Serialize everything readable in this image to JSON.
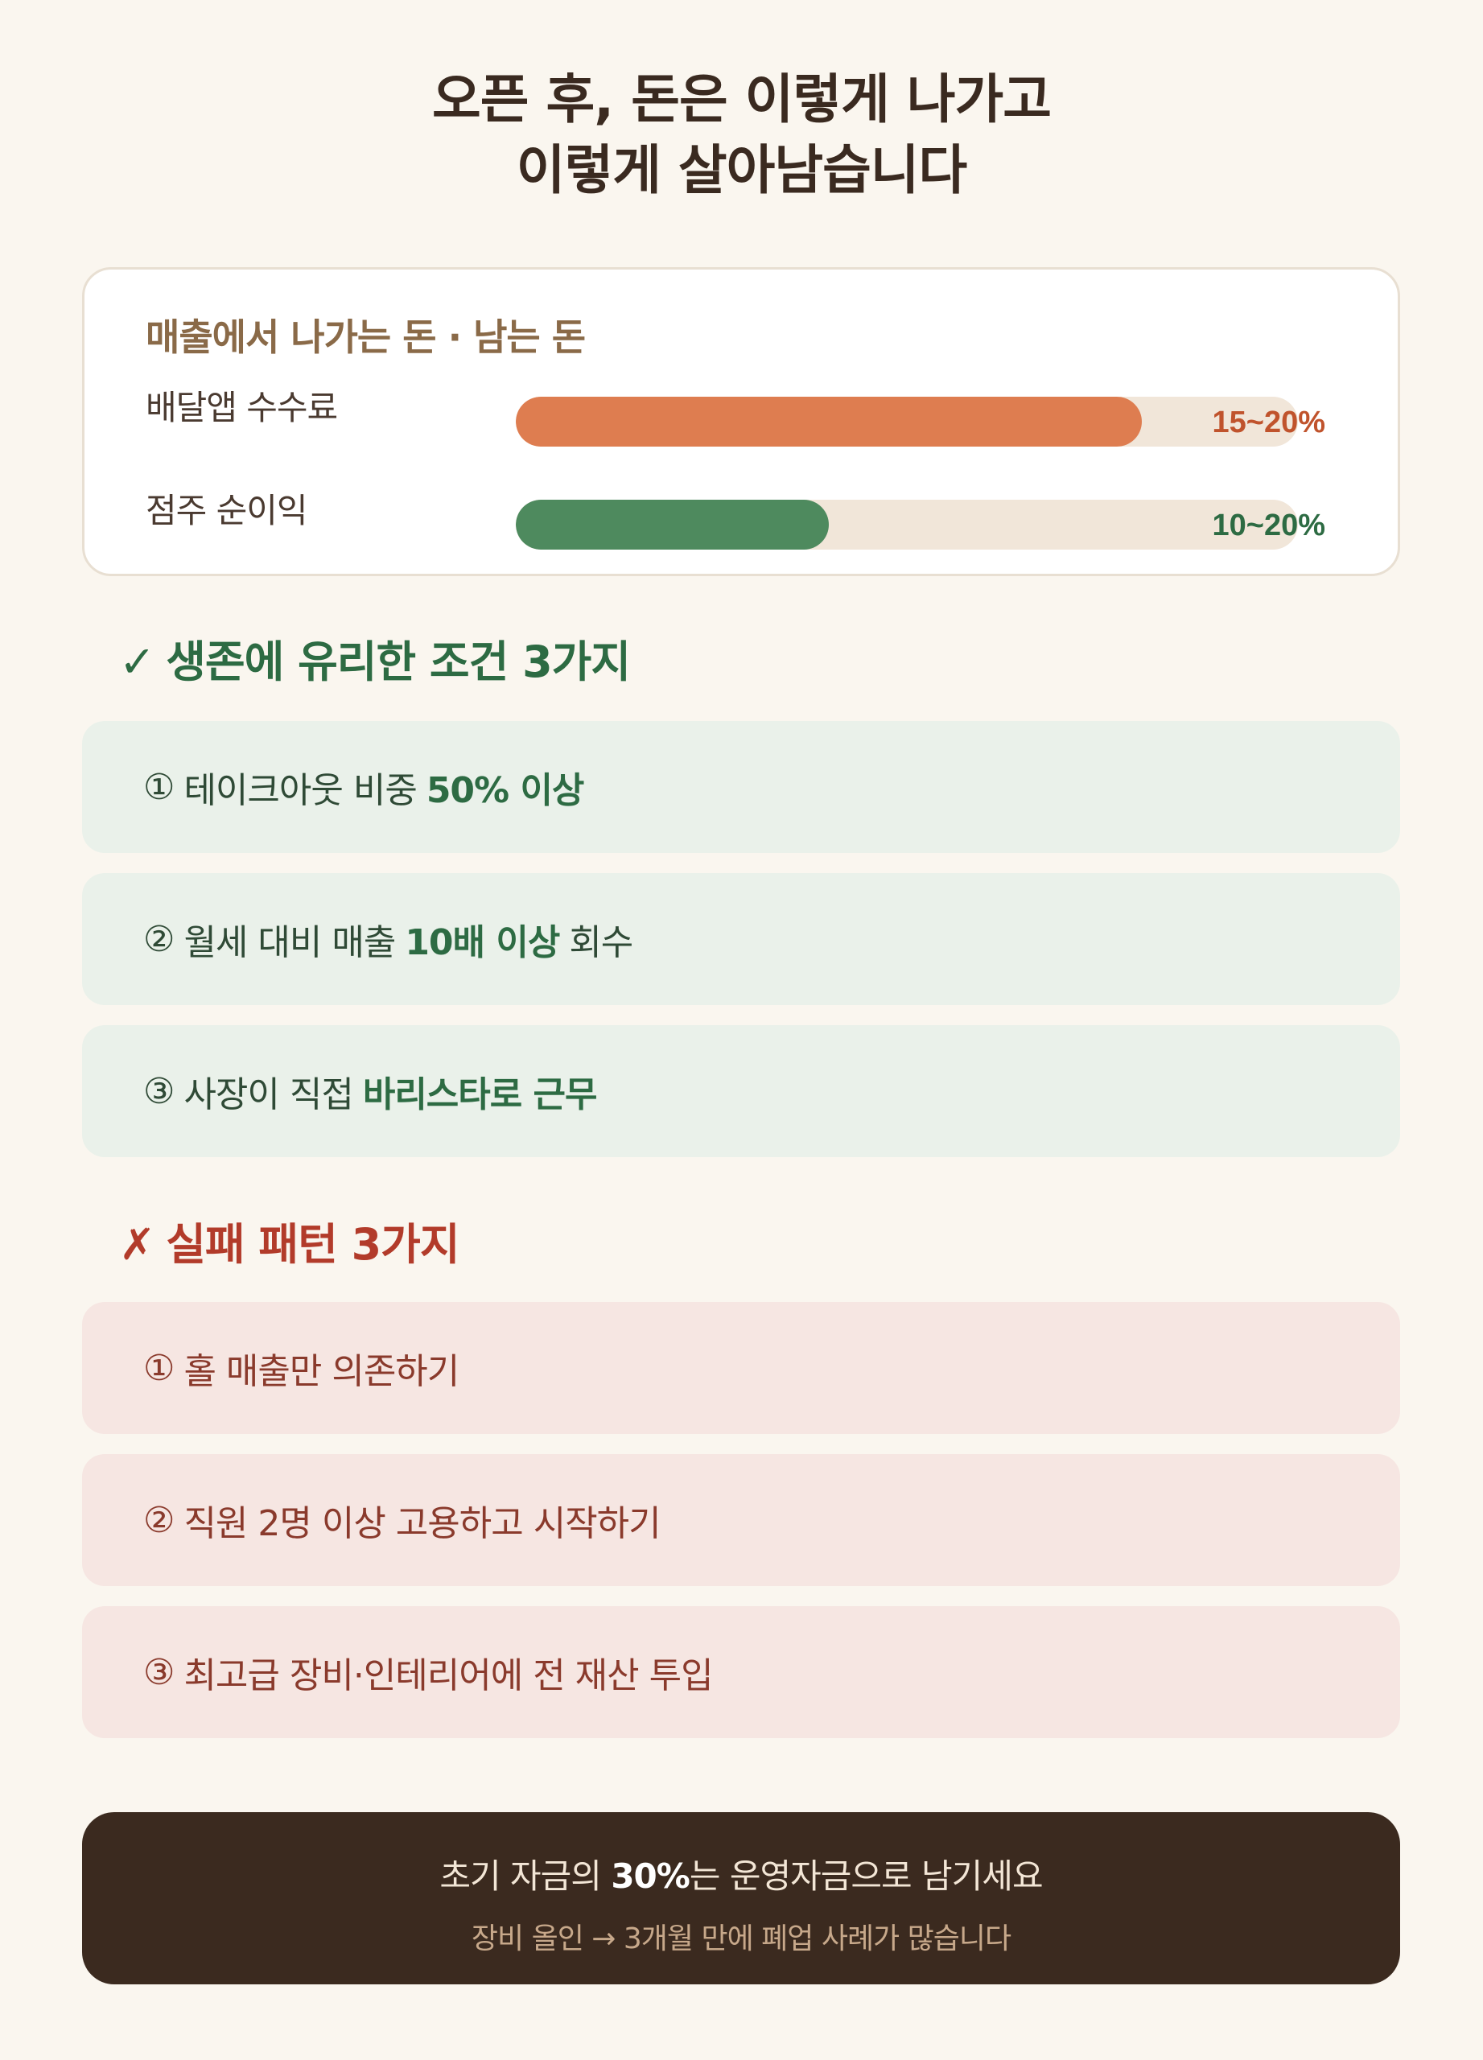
{
  "title": {
    "line1": "오픈 후, 돈은 이렇게 나가고",
    "line2": "이렇게 살아남습니다"
  },
  "money_card": {
    "heading": "매출에서 나가는 돈 · 남는 돈",
    "bars": [
      {
        "label": "배달앱 수수료",
        "value_text": "15~20%",
        "fill_fraction": 0.8,
        "color": "#de7d50",
        "text_color": "#c0532c"
      },
      {
        "label": "점주 순이익",
        "value_text": "10~20%",
        "fill_fraction": 0.4,
        "color": "#4e8a5e",
        "text_color": "#2d6b43"
      }
    ]
  },
  "survival": {
    "mark": "✓",
    "heading": "생존에 유리한 조건 3가지",
    "color": "#2d6b43",
    "items": [
      {
        "num": "①",
        "pre": "테이크아웃 비중",
        "bold": "50% 이상",
        "post": ""
      },
      {
        "num": "②",
        "pre": "월세 대비 매출",
        "bold": "10배 이상",
        "post": "회수"
      },
      {
        "num": "③",
        "pre": "사장이 직접",
        "bold": "바리스타로 근무",
        "post": ""
      }
    ]
  },
  "failure": {
    "mark": "✗",
    "heading": "실패 패턴 3가지",
    "color": "#b23b2a",
    "items": [
      {
        "num": "①",
        "text": "홀 매출만 의존하기"
      },
      {
        "num": "②",
        "text": "직원 2명 이상 고용하고 시작하기"
      },
      {
        "num": "③",
        "text": "최고급 장비·인테리어에 전 재산 투입"
      }
    ]
  },
  "footer": {
    "pre": "초기 자금의",
    "bold": "30%",
    "post": "는 운영자금으로 남기세요",
    "sub": "장비 올인 → 3개월 만에 폐업 사례가 많습니다"
  }
}
